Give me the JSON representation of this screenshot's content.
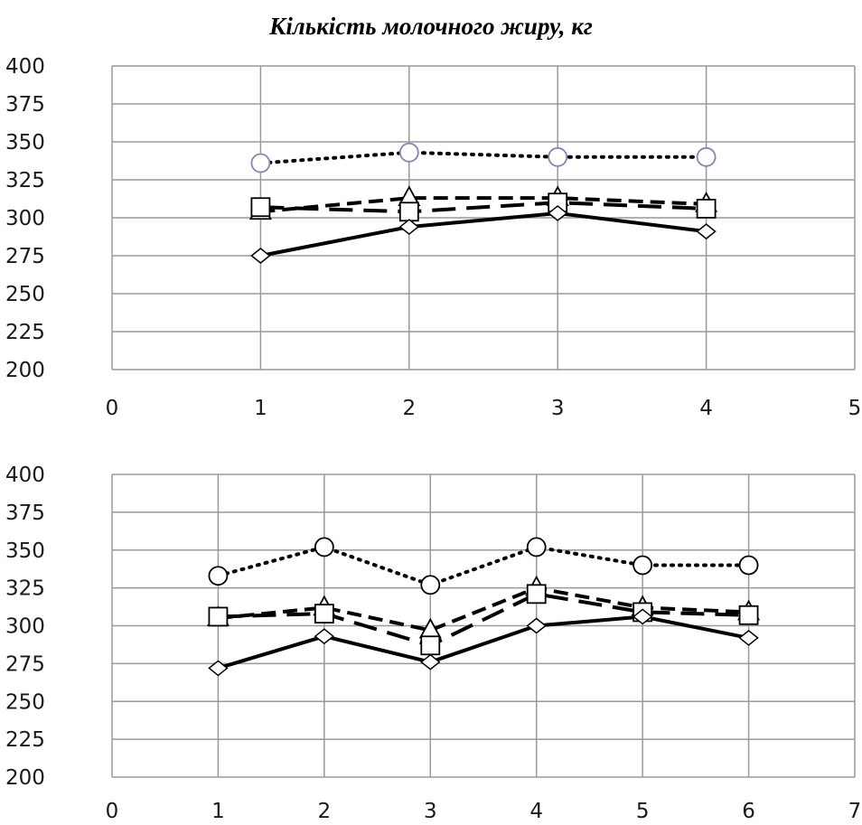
{
  "title": "Кількість молочного жиру, кг",
  "colors": {
    "grid": "#999999",
    "series": "#000000",
    "top_circle_marker": "#8a7fb8"
  },
  "chart_data": [
    {
      "type": "line",
      "grid": true,
      "xlim": [
        0,
        5
      ],
      "ylim": [
        200,
        400
      ],
      "xticks": [
        "0",
        "1",
        "2",
        "3",
        "4",
        "5"
      ],
      "yticks": [
        "200",
        "225",
        "250",
        "275",
        "300",
        "325",
        "350",
        "375",
        "400"
      ],
      "x": [
        1,
        2,
        3,
        4
      ],
      "series": [
        {
          "marker": "circle",
          "line": "dotted",
          "values": [
            336,
            343,
            340,
            340
          ]
        },
        {
          "marker": "triangle",
          "line": "dashed",
          "values": [
            304,
            313,
            313,
            309
          ]
        },
        {
          "marker": "square",
          "line": "long-dashed",
          "values": [
            307,
            304,
            310,
            306
          ]
        },
        {
          "marker": "diamond",
          "line": "solid",
          "values": [
            275,
            294,
            303,
            291
          ]
        }
      ]
    },
    {
      "type": "line",
      "grid": true,
      "xlim": [
        0,
        7
      ],
      "ylim": [
        200,
        400
      ],
      "xticks": [
        "0",
        "1",
        "2",
        "3",
        "4",
        "5",
        "6",
        "7"
      ],
      "yticks": [
        "200",
        "225",
        "250",
        "275",
        "300",
        "325",
        "350",
        "375",
        "400"
      ],
      "x": [
        1,
        2,
        3,
        4,
        5,
        6
      ],
      "series": [
        {
          "marker": "circle",
          "line": "dotted",
          "values": [
            333,
            352,
            327,
            352,
            340,
            340
          ]
        },
        {
          "marker": "triangle",
          "line": "dashed",
          "values": [
            305,
            312,
            297,
            325,
            312,
            309
          ]
        },
        {
          "marker": "square",
          "line": "long-dashed",
          "values": [
            306,
            308,
            287,
            321,
            309,
            307
          ]
        },
        {
          "marker": "diamond",
          "line": "solid",
          "values": [
            272,
            293,
            276,
            300,
            306,
            292
          ]
        }
      ]
    }
  ]
}
